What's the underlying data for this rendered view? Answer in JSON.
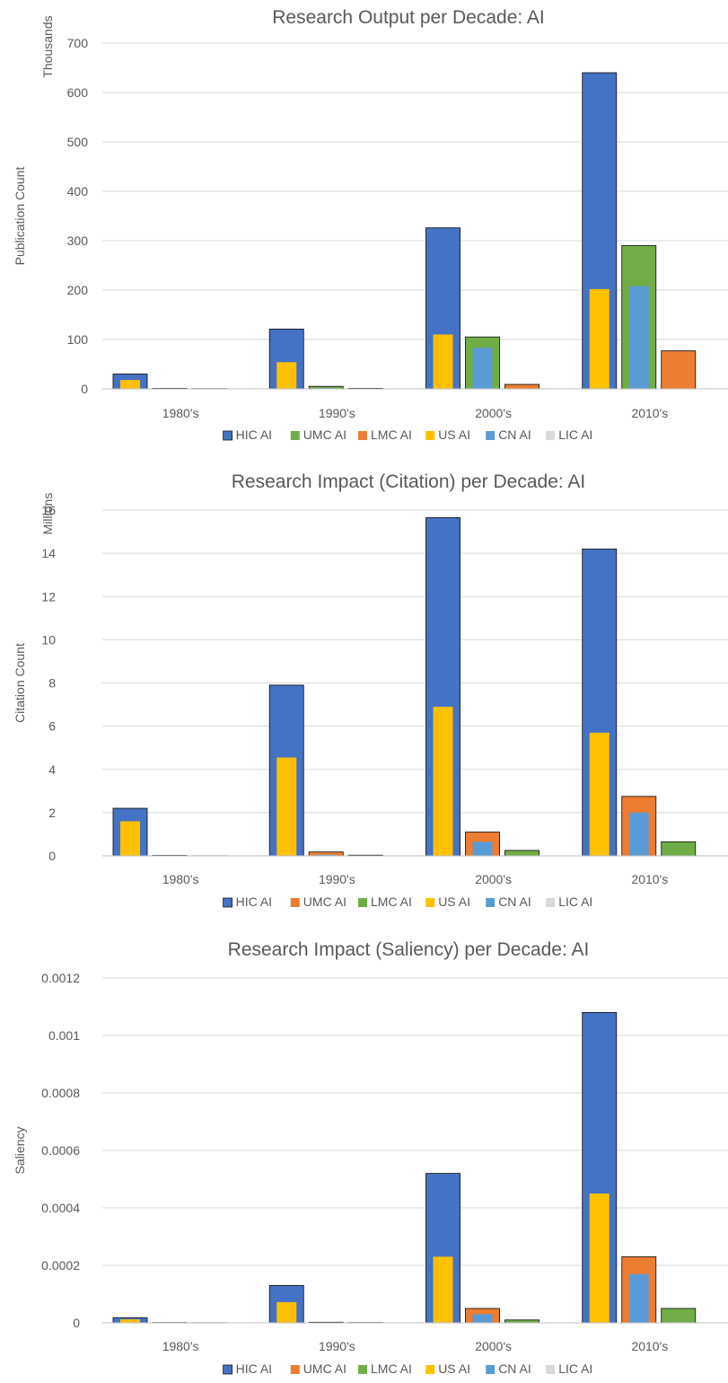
{
  "chart_data": [
    {
      "type": "bar",
      "title": "Research Output per Decade: AI",
      "ylabel": "Publication Count",
      "unit_label": "Thousands",
      "categories": [
        "1980's",
        "1990's",
        "2000's",
        "2010's"
      ],
      "ylim": [
        0,
        700
      ],
      "ticks": [
        "0",
        "100",
        "200",
        "300",
        "400",
        "500",
        "600",
        "700"
      ],
      "grid": true,
      "legend_position": "bottom",
      "series": [
        {
          "name": "HIC AI",
          "color": "#4472C4",
          "values": [
            30,
            121,
            326,
            640
          ]
        },
        {
          "name": "UMC AI",
          "color": "#70AD47",
          "values": [
            1,
            5,
            105,
            290
          ]
        },
        {
          "name": "LMC AI",
          "color": "#ED7D31",
          "values": [
            0.5,
            1,
            9,
            77
          ]
        },
        {
          "name": "US AI",
          "color": "#FFC000",
          "values": [
            18,
            54,
            110,
            202
          ]
        },
        {
          "name": "CN AI",
          "color": "#5B9BD5",
          "values": [
            0.3,
            1.5,
            83,
            208
          ]
        },
        {
          "name": "LIC AI",
          "color": "#D9D9D9",
          "values": [
            0,
            0,
            0.2,
            0.5
          ]
        }
      ]
    },
    {
      "type": "bar",
      "title": "Research Impact (Citation) per Decade: AI",
      "ylabel": "Citation Count",
      "unit_label": "Millions",
      "categories": [
        "1980's",
        "1990's",
        "2000's",
        "2010's"
      ],
      "ylim": [
        0,
        16
      ],
      "ticks": [
        "0",
        "2",
        "4",
        "6",
        "8",
        "10",
        "12",
        "14",
        "16"
      ],
      "grid": true,
      "legend_position": "bottom",
      "series": [
        {
          "name": "HIC AI",
          "color": "#4472C4",
          "values": [
            2.2,
            7.9,
            15.65,
            14.2
          ]
        },
        {
          "name": "UMC AI",
          "color": "#ED7D31",
          "values": [
            0.02,
            0.18,
            1.1,
            2.75
          ]
        },
        {
          "name": "LMC AI",
          "color": "#70AD47",
          "values": [
            0.005,
            0.03,
            0.25,
            0.65
          ]
        },
        {
          "name": "US AI",
          "color": "#FFC000",
          "values": [
            1.6,
            4.55,
            6.9,
            5.7
          ]
        },
        {
          "name": "CN AI",
          "color": "#5B9BD5",
          "values": [
            0.005,
            0.05,
            0.65,
            2.0
          ]
        },
        {
          "name": "LIC AI",
          "color": "#D9D9D9",
          "values": [
            0,
            0,
            0.01,
            0.02
          ]
        }
      ]
    },
    {
      "type": "bar",
      "title": "Research Impact (Saliency) per Decade: AI",
      "ylabel": "Saliency",
      "unit_label": "",
      "categories": [
        "1980's",
        "1990's",
        "2000's",
        "2010's"
      ],
      "ylim": [
        0,
        0.0012
      ],
      "ticks": [
        "0",
        "0.0002",
        "0.0004",
        "0.0006",
        "0.0008",
        "0.001",
        "0.0012"
      ],
      "grid": true,
      "legend_position": "bottom",
      "series": [
        {
          "name": "HIC AI",
          "color": "#4472C4",
          "values": [
            1.8e-05,
            0.00013,
            0.00052,
            0.00108
          ]
        },
        {
          "name": "UMC AI",
          "color": "#ED7D31",
          "values": [
            1e-06,
            2e-06,
            5e-05,
            0.00023
          ]
        },
        {
          "name": "LMC AI",
          "color": "#70AD47",
          "values": [
            5e-07,
            1e-06,
            1e-05,
            5e-05
          ]
        },
        {
          "name": "US AI",
          "color": "#FFC000",
          "values": [
            1.2e-05,
            7.2e-05,
            0.00023,
            0.00045
          ]
        },
        {
          "name": "CN AI",
          "color": "#5B9BD5",
          "values": [
            3e-07,
            1e-06,
            3e-05,
            0.00017
          ]
        },
        {
          "name": "LIC AI",
          "color": "#D9D9D9",
          "values": [
            0,
            0,
            1e-06,
            2e-06
          ]
        }
      ]
    }
  ]
}
